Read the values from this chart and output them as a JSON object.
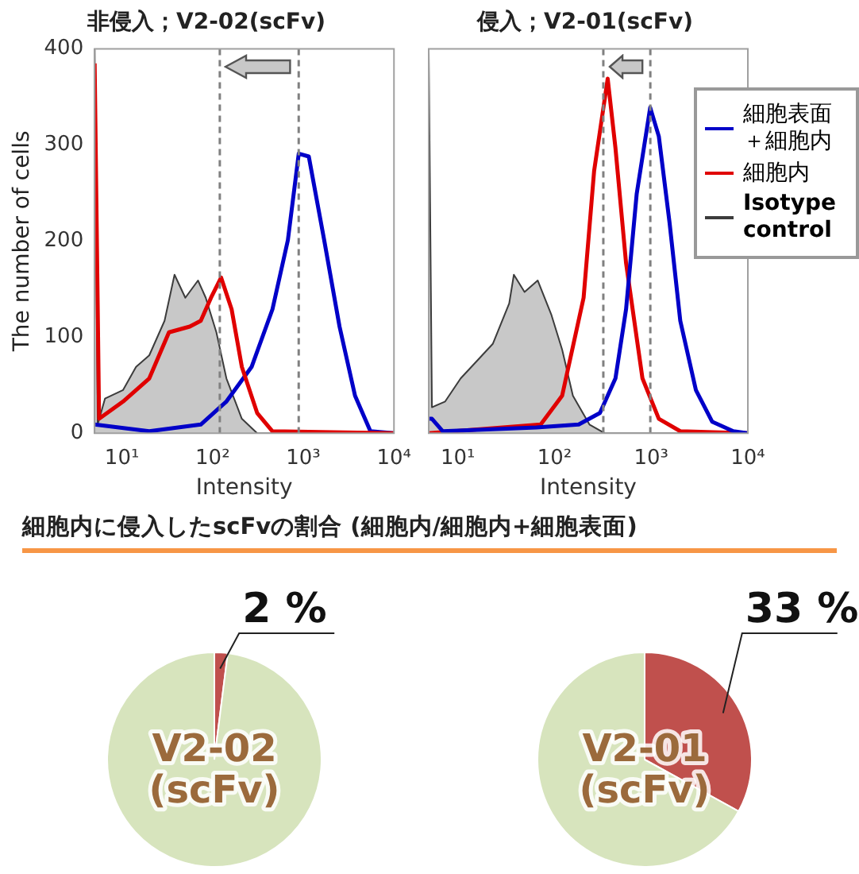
{
  "chart_data": [
    {
      "type": "line",
      "title": "非侵入；V2-02(scFv)",
      "xlabel": "Intensity",
      "ylabel": "The number of cells",
      "log": "x",
      "xlim": [
        5,
        10000
      ],
      "xticks": [
        {
          "value": 10,
          "label": "10¹"
        },
        {
          "value": 100,
          "label": "10²"
        },
        {
          "value": 1000,
          "label": "10³"
        },
        {
          "value": 10000,
          "label": "10⁴"
        }
      ],
      "ylim": [
        0,
        400
      ],
      "yticks": [
        0,
        100,
        200,
        300,
        400
      ],
      "marker": "none",
      "grid": false,
      "ref_lines": [
        {
          "axis": "x",
          "value": 120,
          "color": "#808080",
          "line_style": "dashed"
        },
        {
          "axis": "x",
          "value": 890,
          "color": "#808080",
          "line_style": "dashed"
        }
      ],
      "series": [
        {
          "type": "area",
          "color": "#c8c8c8",
          "x": [
            5,
            5.4,
            6.5,
            10.3,
            14.3,
            20,
            29.5,
            38,
            50,
            69,
            84,
            110,
            142,
            210,
            310
          ],
          "values": [
            400,
            9,
            36,
            45,
            69,
            81,
            117,
            165,
            141,
            159,
            141,
            105,
            57,
            15,
            0
          ]
        },
        {
          "color": "#e00000",
          "x": [
            5,
            5.6,
            10.3,
            20,
            33,
            56,
            74,
            96,
            124,
            162,
            210,
            310,
            457,
            10000
          ],
          "values": [
            385,
            15,
            33,
            57,
            105,
            111,
            117,
            141,
            162,
            129,
            69,
            21,
            2,
            0
          ]
        },
        {
          "color": "#0000c8",
          "x": [
            5,
            20,
            74,
            142,
            269,
            457,
            676,
            891,
            1150,
            1700,
            2510,
            3720,
            5500,
            10000
          ],
          "values": [
            9,
            2,
            9,
            33,
            69,
            129,
            201,
            291,
            288,
            201,
            111,
            39,
            2,
            0
          ]
        }
      ]
    },
    {
      "type": "line",
      "title": "侵入；V2-01(scFv)",
      "xlabel": "Intensity",
      "log": "x",
      "xlim": [
        5,
        10000
      ],
      "xticks": [
        {
          "value": 10,
          "label": "10¹"
        },
        {
          "value": 100,
          "label": "10²"
        },
        {
          "value": 1000,
          "label": "10³"
        },
        {
          "value": 10000,
          "label": "10⁴"
        }
      ],
      "ylim": [
        0,
        400
      ],
      "yticks": [
        0,
        100,
        200,
        300,
        400
      ],
      "tick_labels": "x",
      "marker": "none",
      "grid": false,
      "legend": "top right",
      "ref_lines": [
        {
          "axis": "x",
          "value": 320,
          "color": "#808080",
          "line_style": "dashed"
        },
        {
          "axis": "x",
          "value": 980,
          "color": "#808080",
          "line_style": "dashed"
        }
      ],
      "series": [
        {
          "name": "細胞表面＋細胞内",
          "color": "#0000c8",
          "x": [
            5,
            5.4,
            7,
            65,
            178,
            295,
            427,
            550,
            708,
            977,
            1200,
            1550,
            2000,
            2900,
            4270,
            7080,
            10000
          ],
          "values": [
            15,
            15,
            2,
            6,
            9,
            21,
            57,
            129,
            249,
            339,
            309,
            219,
            117,
            45,
            12,
            2,
            0
          ]
        },
        {
          "name": "細胞内",
          "color": "#e00000",
          "x": [
            5,
            72,
            120,
            200,
            257,
            355,
            427,
            550,
            813,
            1200,
            2000,
            10000
          ],
          "values": [
            0,
            9,
            39,
            141,
            273,
            369,
            297,
            177,
            57,
            15,
            2,
            0
          ]
        },
        {
          "name": "Isotype control",
          "type": "area",
          "color": "#c8c8c8",
          "x": [
            5,
            5.4,
            7.4,
            10.7,
            15.7,
            23,
            34,
            38,
            49,
            67,
            93,
            120,
            155,
            230,
            330
          ],
          "values": [
            400,
            27,
            33,
            57,
            75,
            93,
            135,
            165,
            147,
            159,
            123,
            87,
            39,
            9,
            0
          ]
        }
      ]
    },
    {
      "type": "other",
      "title": "細胞内に侵入したscFvの割合 (細胞内/細胞内+細胞表面)"
    },
    {
      "type": "pie",
      "title": "V2-02 (scFv)",
      "categories": [
        null,
        null
      ],
      "values": [
        2,
        98
      ],
      "colors": [
        "#c0504d",
        "#d7e4bd"
      ],
      "value_labels": [
        "2 %",
        null
      ]
    },
    {
      "type": "pie",
      "title": "V2-01 (scFv)",
      "categories": [
        null,
        null
      ],
      "values": [
        33,
        67
      ],
      "colors": [
        "#c0504d",
        "#d7e4bd"
      ],
      "value_labels": [
        "33 %",
        null
      ]
    }
  ]
}
